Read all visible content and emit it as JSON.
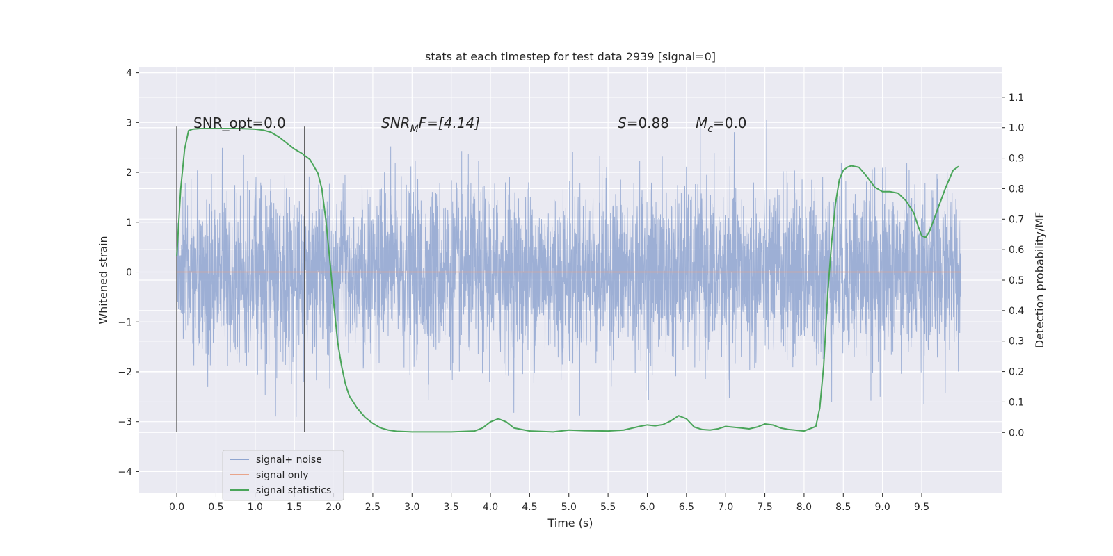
{
  "chart_data": {
    "type": "line",
    "title": "stats at each timestep for test data 2939 [signal=0]",
    "xlabel": "Time (s)",
    "ylabel": "Whitened strain",
    "ylabel_right": "Detection probability/MF",
    "xlim": [
      -0.48,
      10.52
    ],
    "ylim": [
      -4.44,
      4.12
    ],
    "ylim_right": [
      -0.2,
      1.2
    ],
    "x_ticks": [
      0.0,
      0.5,
      1.0,
      1.5,
      2.0,
      2.5,
      3.0,
      3.5,
      4.0,
      4.5,
      5.0,
      5.5,
      6.0,
      6.5,
      7.0,
      7.5,
      8.0,
      8.5,
      9.0,
      9.5
    ],
    "x_tick_labels": [
      "0.0",
      "0.5",
      "1.0",
      "1.5",
      "2.0",
      "2.5",
      "3.0",
      "3.5",
      "4.0",
      "4.5",
      "5.0",
      "5.5",
      "6.0",
      "6.5",
      "7.0",
      "7.5",
      "8.0",
      "8.5",
      "9.0",
      "9.5"
    ],
    "y_ticks": [
      4,
      3,
      2,
      1,
      0,
      -1,
      -2,
      -3,
      -4
    ],
    "y_tick_labels": [
      "4",
      "3",
      "2",
      "1",
      "0",
      "−1",
      "−2",
      "−3",
      "−4"
    ],
    "y_right_ticks": [
      1.1,
      1.0,
      0.9,
      0.8,
      0.7,
      0.6,
      0.5,
      0.4,
      0.3,
      0.2,
      0.1,
      0.0
    ],
    "y_right_tick_labels": [
      "1.1",
      "1.0",
      "0.9",
      "0.8",
      "0.7",
      "0.6",
      "0.5",
      "0.4",
      "0.3",
      "0.2",
      "0.1",
      "0.0"
    ],
    "grid": true,
    "legend_position": "lower-left",
    "annotations": {
      "snr_opt": "SNR_opt=0.0",
      "snr_mf_base": "SNR",
      "snr_mf_sub": "M",
      "snr_mf_rest": "F=[4.14]",
      "s_var": "S",
      "s_rest": "=0.88",
      "mc_var": "M",
      "mc_sub": "c",
      "mc_rest": "=0.0"
    },
    "vlines": [
      {
        "x": 0.0,
        "ymin": -3.2,
        "ymax": 2.92
      },
      {
        "x": 1.63,
        "ymin": -3.2,
        "ymax": 2.92
      }
    ],
    "series": [
      {
        "name": "signal+ noise",
        "color": "#8fa5d0",
        "axis": "left",
        "render": "noise",
        "x_range": [
          0.0,
          10.0
        ],
        "std": 0.85,
        "max": 3.75,
        "min": -4.05
      },
      {
        "name": "signal only",
        "color": "#e8a48a",
        "axis": "left",
        "x": [
          0.0,
          10.0
        ],
        "y": [
          0.0,
          0.0
        ]
      },
      {
        "name": "signal statistics",
        "color": "#4aa55a",
        "axis": "right",
        "x": [
          0.0,
          0.05,
          0.1,
          0.15,
          0.2,
          0.3,
          0.5,
          0.8,
          1.0,
          1.1,
          1.2,
          1.3,
          1.4,
          1.5,
          1.6,
          1.7,
          1.8,
          1.85,
          1.9,
          1.95,
          2.0,
          2.05,
          2.1,
          2.15,
          2.2,
          2.3,
          2.4,
          2.5,
          2.6,
          2.7,
          2.8,
          3.0,
          3.5,
          3.8,
          3.9,
          4.0,
          4.1,
          4.2,
          4.3,
          4.5,
          4.8,
          5.0,
          5.2,
          5.5,
          5.7,
          5.9,
          6.0,
          6.1,
          6.2,
          6.3,
          6.4,
          6.5,
          6.6,
          6.7,
          6.8,
          6.9,
          7.0,
          7.2,
          7.3,
          7.4,
          7.5,
          7.6,
          7.7,
          7.8,
          8.0,
          8.15,
          8.2,
          8.25,
          8.3,
          8.35,
          8.4,
          8.45,
          8.5,
          8.55,
          8.6,
          8.7,
          8.8,
          8.9,
          9.0,
          9.1,
          9.2,
          9.3,
          9.4,
          9.45,
          9.5,
          9.55,
          9.6,
          9.7,
          9.8,
          9.9,
          9.97
        ],
        "y": [
          0.58,
          0.8,
          0.93,
          0.99,
          0.995,
          0.997,
          0.997,
          0.997,
          0.995,
          0.992,
          0.985,
          0.97,
          0.95,
          0.93,
          0.915,
          0.895,
          0.85,
          0.8,
          0.7,
          0.57,
          0.43,
          0.3,
          0.22,
          0.16,
          0.12,
          0.08,
          0.05,
          0.03,
          0.015,
          0.008,
          0.004,
          0.002,
          0.002,
          0.005,
          0.015,
          0.035,
          0.045,
          0.035,
          0.015,
          0.005,
          0.002,
          0.008,
          0.006,
          0.005,
          0.008,
          0.02,
          0.025,
          0.022,
          0.026,
          0.038,
          0.055,
          0.045,
          0.018,
          0.01,
          0.008,
          0.012,
          0.02,
          0.015,
          0.012,
          0.018,
          0.028,
          0.025,
          0.015,
          0.01,
          0.005,
          0.02,
          0.08,
          0.22,
          0.45,
          0.62,
          0.75,
          0.83,
          0.86,
          0.87,
          0.875,
          0.87,
          0.84,
          0.805,
          0.79,
          0.79,
          0.785,
          0.76,
          0.72,
          0.68,
          0.645,
          0.64,
          0.66,
          0.73,
          0.8,
          0.86,
          0.873
        ]
      }
    ]
  }
}
